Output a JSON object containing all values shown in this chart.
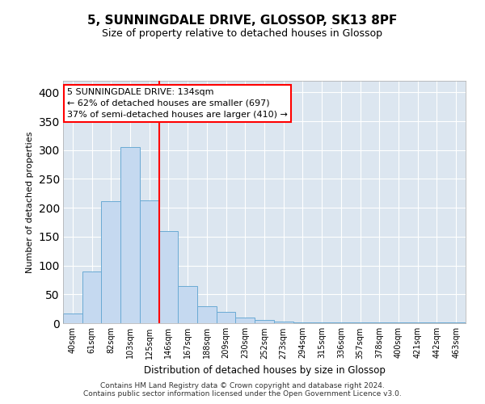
{
  "title": "5, SUNNINGDALE DRIVE, GLOSSOP, SK13 8PF",
  "subtitle": "Size of property relative to detached houses in Glossop",
  "xlabel": "Distribution of detached houses by size in Glossop",
  "ylabel": "Number of detached properties",
  "categories": [
    "40sqm",
    "61sqm",
    "82sqm",
    "103sqm",
    "125sqm",
    "146sqm",
    "167sqm",
    "188sqm",
    "209sqm",
    "230sqm",
    "252sqm",
    "273sqm",
    "294sqm",
    "315sqm",
    "336sqm",
    "357sqm",
    "378sqm",
    "400sqm",
    "421sqm",
    "442sqm",
    "463sqm"
  ],
  "values": [
    17,
    89,
    211,
    305,
    213,
    160,
    64,
    30,
    20,
    10,
    5,
    3,
    2,
    2,
    2,
    2,
    2,
    2,
    2,
    2,
    2
  ],
  "bar_color": "#c5d9f0",
  "bar_edge_color": "#6aaad4",
  "red_line_x": 4.5,
  "annotation_text": "5 SUNNINGDALE DRIVE: 134sqm\n← 62% of detached houses are smaller (697)\n37% of semi-detached houses are larger (410) →",
  "footer_text": "Contains HM Land Registry data © Crown copyright and database right 2024.\nContains public sector information licensed under the Open Government Licence v3.0.",
  "ylim": [
    0,
    420
  ],
  "fig_bg": "#ffffff",
  "plot_bg": "#dce6f0",
  "grid_color": "#ffffff",
  "title_fontsize": 11,
  "subtitle_fontsize": 9,
  "ylabel_fontsize": 8,
  "xlabel_fontsize": 8.5,
  "tick_fontsize": 7,
  "annot_fontsize": 8,
  "footer_fontsize": 6.5
}
